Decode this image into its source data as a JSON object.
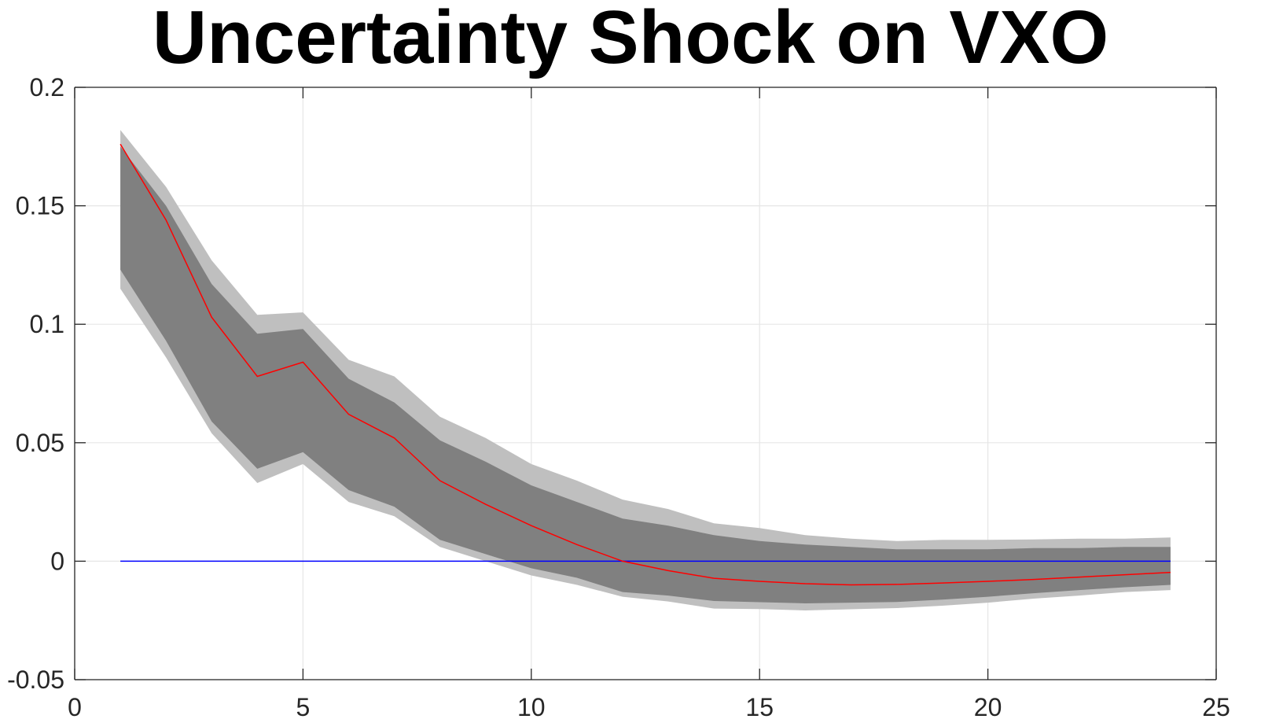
{
  "chart_data": {
    "type": "area",
    "title": "Uncertainty Shock on VXO",
    "xlabel": "",
    "ylabel": "",
    "xlim": [
      0,
      25
    ],
    "ylim": [
      -0.05,
      0.2
    ],
    "xticks": [
      0,
      5,
      10,
      15,
      20,
      25
    ],
    "xtick_labels": [
      "0",
      "5",
      "10",
      "15",
      "20",
      "25"
    ],
    "yticks": [
      -0.05,
      0,
      0.05,
      0.1,
      0.15,
      0.2
    ],
    "ytick_labels": [
      "-0.05",
      "0",
      "0.05",
      "0.1",
      "0.15",
      "0.2"
    ],
    "grid": true,
    "x": [
      1,
      2,
      3,
      4,
      5,
      6,
      7,
      8,
      9,
      10,
      11,
      12,
      13,
      14,
      15,
      16,
      17,
      18,
      19,
      20,
      21,
      22,
      23,
      24
    ],
    "series": [
      {
        "role": "outer_band_upper",
        "color": "#bfbfbf",
        "values": [
          0.182,
          0.158,
          0.127,
          0.104,
          0.105,
          0.085,
          0.078,
          0.061,
          0.052,
          0.041,
          0.034,
          0.026,
          0.022,
          0.016,
          0.014,
          0.011,
          0.0095,
          0.0085,
          0.009,
          0.009,
          0.0092,
          0.0095,
          0.0095,
          0.01
        ]
      },
      {
        "role": "outer_band_lower",
        "color": "#bfbfbf",
        "values": [
          0.115,
          0.086,
          0.054,
          0.033,
          0.041,
          0.025,
          0.019,
          0.006,
          0.0,
          -0.006,
          -0.01,
          -0.015,
          -0.017,
          -0.02,
          -0.0202,
          -0.0208,
          -0.0203,
          -0.0198,
          -0.0188,
          -0.0175,
          -0.0158,
          -0.0145,
          -0.013,
          -0.0122
        ]
      },
      {
        "role": "inner_band_upper",
        "color": "#808080",
        "values": [
          0.175,
          0.15,
          0.117,
          0.096,
          0.098,
          0.077,
          0.067,
          0.051,
          0.042,
          0.032,
          0.025,
          0.018,
          0.015,
          0.011,
          0.0085,
          0.007,
          0.006,
          0.005,
          0.005,
          0.005,
          0.0055,
          0.0055,
          0.006,
          0.006
        ]
      },
      {
        "role": "inner_band_lower",
        "color": "#808080",
        "values": [
          0.123,
          0.093,
          0.059,
          0.039,
          0.046,
          0.03,
          0.023,
          0.009,
          0.003,
          -0.003,
          -0.007,
          -0.013,
          -0.0145,
          -0.0168,
          -0.0173,
          -0.0178,
          -0.0175,
          -0.0172,
          -0.0162,
          -0.015,
          -0.0135,
          -0.0122,
          -0.011,
          -0.01
        ]
      },
      {
        "role": "median",
        "color": "#ff0000",
        "values": [
          0.176,
          0.144,
          0.103,
          0.078,
          0.084,
          0.062,
          0.052,
          0.034,
          0.024,
          0.015,
          0.007,
          0.0,
          -0.004,
          -0.0072,
          -0.0085,
          -0.0095,
          -0.01,
          -0.0098,
          -0.0092,
          -0.0085,
          -0.0077,
          -0.0067,
          -0.0057,
          -0.0047
        ]
      },
      {
        "role": "zero_line",
        "color": "#0000ff",
        "values": [
          0,
          0,
          0,
          0,
          0,
          0,
          0,
          0,
          0,
          0,
          0,
          0,
          0,
          0,
          0,
          0,
          0,
          0,
          0,
          0,
          0,
          0,
          0,
          0
        ]
      }
    ]
  }
}
